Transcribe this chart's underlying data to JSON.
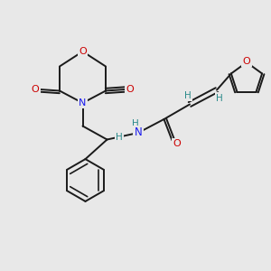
{
  "bg_color": "#e8e8e8",
  "bond_color": "#1a1a1a",
  "atom_colors": {
    "O": "#cc0000",
    "N": "#1a1aee",
    "C": "#1a1a1a",
    "H": "#2a8a8a"
  }
}
